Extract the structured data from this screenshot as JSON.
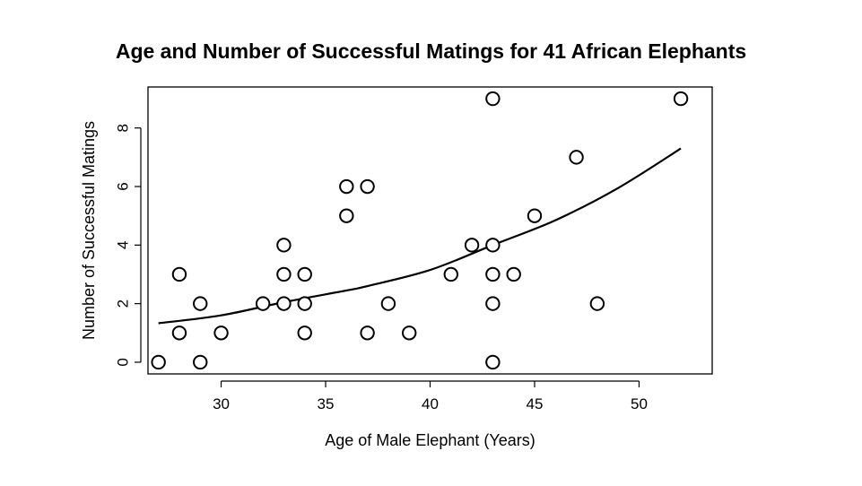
{
  "chart_data": {
    "type": "scatter",
    "title": "Age and Number of Successful Matings for 41 African Elephants",
    "xlabel": "Age of Male Elephant (Years)",
    "ylabel": "Number of Successful Matings",
    "xlim": [
      26.5,
      53.5
    ],
    "ylim": [
      -0.4,
      9.4
    ],
    "x_ticks": [
      30,
      35,
      40,
      45,
      50
    ],
    "y_ticks": [
      0,
      2,
      4,
      6,
      8
    ],
    "grid": false,
    "series": [
      {
        "marker": "open-circle",
        "points": [
          {
            "x": 27,
            "y": 0
          },
          {
            "x": 28,
            "y": 1
          },
          {
            "x": 28,
            "y": 3
          },
          {
            "x": 29,
            "y": 0
          },
          {
            "x": 29,
            "y": 2
          },
          {
            "x": 30,
            "y": 1
          },
          {
            "x": 32,
            "y": 2
          },
          {
            "x": 33,
            "y": 2
          },
          {
            "x": 33,
            "y": 3
          },
          {
            "x": 33,
            "y": 4
          },
          {
            "x": 34,
            "y": 1
          },
          {
            "x": 34,
            "y": 2
          },
          {
            "x": 34,
            "y": 3
          },
          {
            "x": 36,
            "y": 5
          },
          {
            "x": 36,
            "y": 6
          },
          {
            "x": 37,
            "y": 1
          },
          {
            "x": 37,
            "y": 6
          },
          {
            "x": 38,
            "y": 2
          },
          {
            "x": 39,
            "y": 1
          },
          {
            "x": 41,
            "y": 3
          },
          {
            "x": 42,
            "y": 4
          },
          {
            "x": 43,
            "y": 0
          },
          {
            "x": 43,
            "y": 2
          },
          {
            "x": 43,
            "y": 3
          },
          {
            "x": 43,
            "y": 4
          },
          {
            "x": 43,
            "y": 9
          },
          {
            "x": 44,
            "y": 3
          },
          {
            "x": 45,
            "y": 5
          },
          {
            "x": 47,
            "y": 7
          },
          {
            "x": 48,
            "y": 2
          },
          {
            "x": 52,
            "y": 9
          }
        ]
      }
    ],
    "fitted_curve": {
      "type": "line",
      "color": "#000000",
      "points": [
        {
          "x": 27,
          "y": 1.33
        },
        {
          "x": 30,
          "y": 1.6
        },
        {
          "x": 33,
          "y": 2.05
        },
        {
          "x": 36,
          "y": 2.45
        },
        {
          "x": 37,
          "y": 2.6
        },
        {
          "x": 40,
          "y": 3.15
        },
        {
          "x": 43,
          "y": 4.0
        },
        {
          "x": 46,
          "y": 4.85
        },
        {
          "x": 49,
          "y": 5.95
        },
        {
          "x": 52,
          "y": 7.3
        }
      ]
    }
  }
}
